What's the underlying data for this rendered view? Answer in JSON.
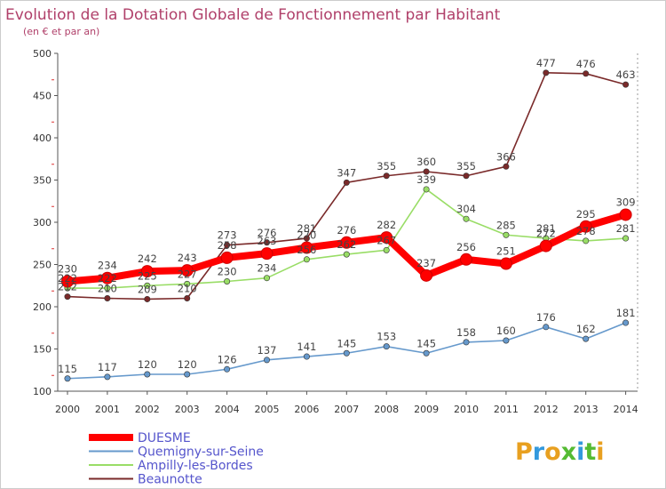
{
  "chart_data": {
    "type": "line",
    "title": "Evolution de la Dotation Globale de Fonctionnement par Habitant",
    "subtitle": "(en € et par an)",
    "x": [
      "2000",
      "2001",
      "2002",
      "2003",
      "2004",
      "2005",
      "2006",
      "2007",
      "2008",
      "2009",
      "2010",
      "2011",
      "2012",
      "2013",
      "2014"
    ],
    "ylim": [
      100,
      500
    ],
    "yticks": [
      100,
      150,
      200,
      250,
      300,
      350,
      400,
      450,
      500
    ],
    "grid": false,
    "legend_position": "bottom-left",
    "series": [
      {
        "name": "DUESME",
        "color": "#ff0000",
        "values": [
          230,
          234,
          242,
          243,
          258,
          263,
          270,
          276,
          282,
          237,
          256,
          251,
          272,
          295,
          309
        ]
      },
      {
        "name": "Quemigny-sur-Seine",
        "color": "#6699cc",
        "values": [
          115,
          117,
          120,
          120,
          126,
          137,
          141,
          145,
          153,
          145,
          158,
          160,
          176,
          162,
          181
        ]
      },
      {
        "name": "Ampilly-les-Bordes",
        "color": "#99dd66",
        "values": [
          222,
          222,
          225,
          227,
          230,
          234,
          256,
          262,
          267,
          339,
          304,
          285,
          281,
          278,
          281
        ]
      },
      {
        "name": "Beaunotte",
        "color": "#7a2a2a",
        "values": [
          212,
          210,
          209,
          210,
          273,
          276,
          281,
          347,
          355,
          360,
          355,
          366,
          477,
          476,
          463
        ]
      }
    ]
  },
  "logo": {
    "text": "Proxiti"
  }
}
